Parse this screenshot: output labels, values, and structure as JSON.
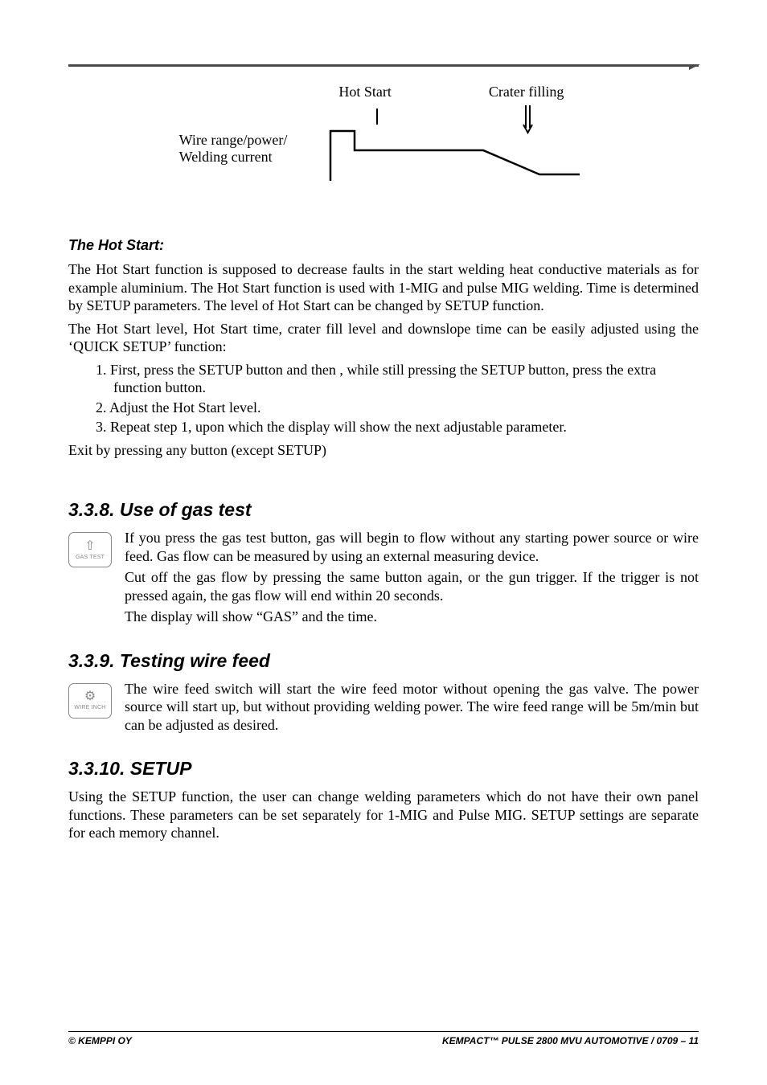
{
  "diagram": {
    "label_hotstart": "Hot Start",
    "label_craterfill": "Crater filling",
    "label_wire": "Wire range/power/\nWelding current",
    "stroke": "#000000",
    "stroke_width": 2
  },
  "hotstart": {
    "heading": "The Hot Start:",
    "p1": "The Hot Start function is supposed to decrease faults in the start welding heat conductive materials as for example aluminium. The Hot Start function is used with 1-MIG and pulse MIG welding. Time is determined by SETUP parameters. The level of Hot Start can be changed by SETUP function.",
    "p2": "The Hot Start level, Hot Start time, crater fill level and downslope time can be easily adjusted using the ‘QUICK SETUP’ function:",
    "steps": [
      "First, press the SETUP button and then , while still pressing the SETUP button, press the extra function button.",
      "Adjust the Hot Start level.",
      "Repeat step 1, upon which the display will show the next adjustable parameter."
    ],
    "exit": "Exit by pressing any button (except SETUP)"
  },
  "s338": {
    "heading": "3.3.8. Use of gas test",
    "icon_glyph": "⇧",
    "icon_label": "GAS TEST",
    "p1": "If you press the gas test button, gas will begin to flow without any starting power source or wire feed. Gas flow can be measured by using an external measuring device.",
    "p2": "Cut off the gas flow by pressing the same button again, or the gun trigger. If the trigger is not pressed again, the gas flow will end within 20 seconds.",
    "p3": "The display will show “GAS” and the time."
  },
  "s339": {
    "heading": "3.3.9. Testing wire feed",
    "icon_glyph": "⚙",
    "icon_label": "WIRE INCH",
    "p1": "The wire feed switch will start the wire feed motor without opening the gas valve. The power source will start up, but without providing welding power. The wire feed range will  be 5m/min but can be adjusted as desired."
  },
  "s3310": {
    "heading": "3.3.10. SETUP",
    "p1": "Using the SETUP function, the user can change welding parameters which do not have their own panel functions. These parameters can be set separately for 1-MIG and Pulse MIG. SETUP settings are separate for each memory channel."
  },
  "footer": {
    "left": "© KEMPPI OY",
    "right": "KEMPACT™ PULSE 2800 MVU AUTOMOTIVE / 0709 – 11"
  }
}
